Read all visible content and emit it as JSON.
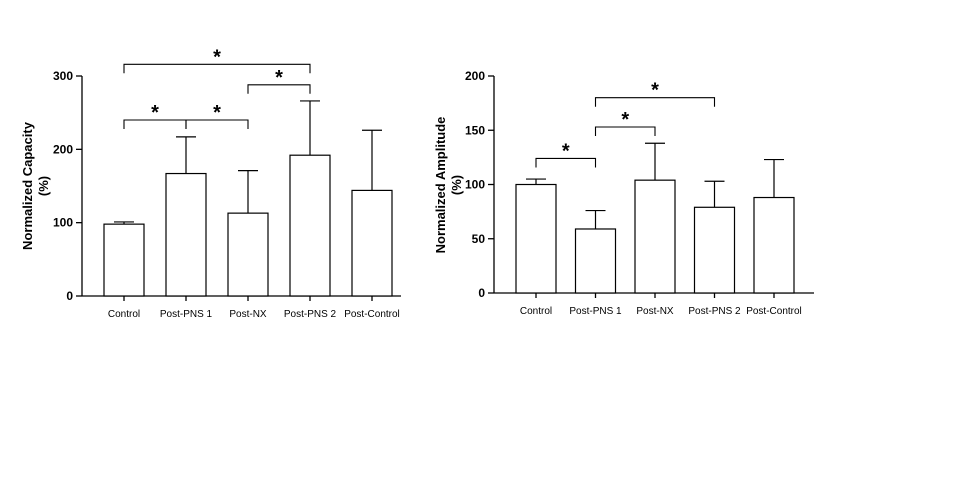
{
  "chart_data": [
    {
      "type": "bar",
      "title": "",
      "ylabel": [
        "Normalized Capacity",
        "(%)"
      ],
      "xlabel": "",
      "categories": [
        "Control",
        "Post-PNS 1",
        "Post-NX",
        "Post-PNS 2",
        "Post-Control"
      ],
      "series": [
        {
          "values": [
            98,
            167,
            113,
            192,
            144
          ],
          "error_upper": [
            101,
            217,
            171,
            266,
            226
          ]
        }
      ],
      "ylim": [
        0,
        300
      ],
      "yticks": [
        0,
        100,
        200,
        300
      ],
      "ytick_labels": [
        "0",
        "100",
        "200",
        "300"
      ],
      "grid": false,
      "significance": [
        {
          "from": "Control",
          "to": "Post-PNS 1",
          "y": 240,
          "label": "*"
        },
        {
          "from": "Post-PNS 1",
          "to": "Post-NX",
          "y": 240,
          "label": "*"
        },
        {
          "from": "Post-NX",
          "to": "Post-PNS 2",
          "y": 288,
          "label": "*"
        },
        {
          "from": "Control",
          "to": "Post-PNS 2",
          "y": 316,
          "label": "*"
        }
      ]
    },
    {
      "type": "bar",
      "title": "",
      "ylabel": [
        "Normalized Amplitude",
        "(%)"
      ],
      "xlabel": "",
      "categories": [
        "Control",
        "Post-PNS 1",
        "Post-NX",
        "Post-PNS 2",
        "Post-Control"
      ],
      "series": [
        {
          "values": [
            100,
            59,
            104,
            79,
            88
          ],
          "error_upper": [
            105,
            76,
            138,
            103,
            123
          ]
        }
      ],
      "ylim": [
        0,
        200
      ],
      "yticks": [
        0,
        50,
        100,
        150,
        200
      ],
      "ytick_labels": [
        "0",
        "50",
        "100",
        "150",
        "200"
      ],
      "grid": false,
      "significance": [
        {
          "from": "Control",
          "to": "Post-PNS 1",
          "y": 124,
          "label": "*"
        },
        {
          "from": "Post-PNS 1",
          "to": "Post-NX",
          "y": 153,
          "label": "*"
        },
        {
          "from": "Post-PNS 1",
          "to": "Post-PNS 2",
          "y": 180,
          "label": "*"
        }
      ]
    }
  ]
}
